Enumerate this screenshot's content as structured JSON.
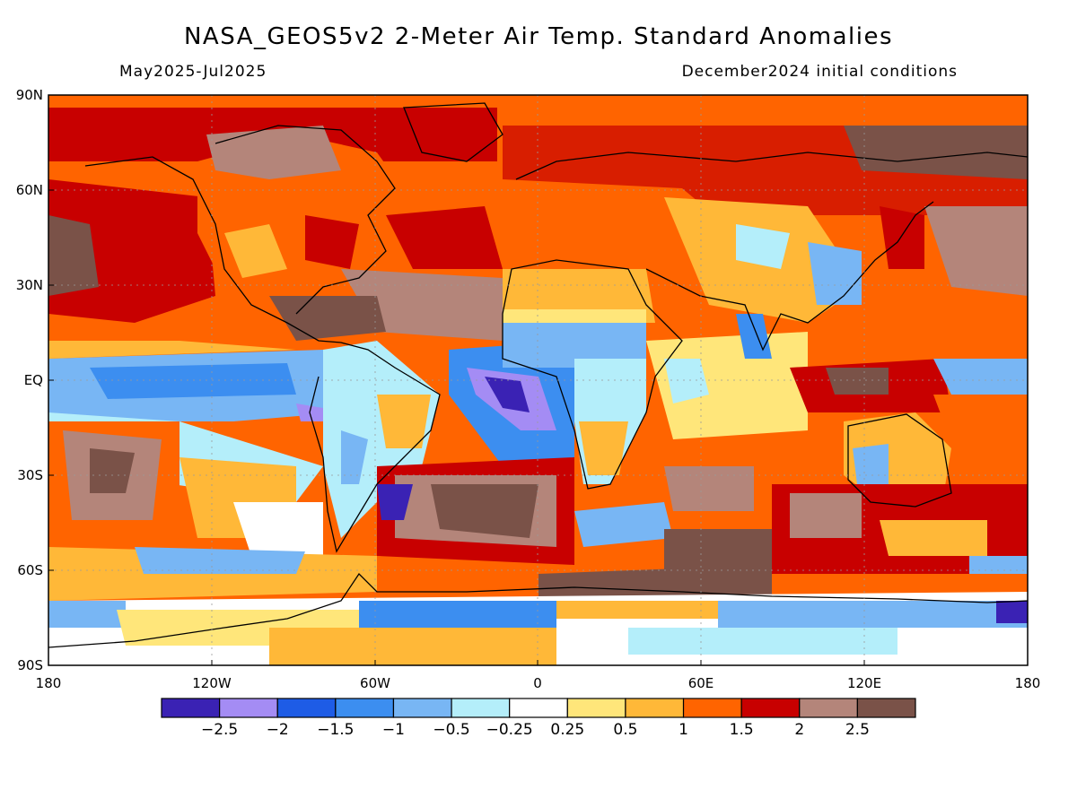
{
  "header": {
    "title": "NASA_GEOS5v2 2-Meter Air Temp. Standard Anomalies",
    "period": "May2025-Jul2025",
    "init": "December2024 initial conditions"
  },
  "axes": {
    "lat_labels": [
      "90N",
      "60N",
      "30N",
      "EQ",
      "30S",
      "60S",
      "90S"
    ],
    "lon_labels": [
      "180",
      "120W",
      "60W",
      "0",
      "60E",
      "120E",
      "180"
    ]
  },
  "colorbar": {
    "colors": [
      "#3a22b4",
      "#a48cf4",
      "#1e5ce6",
      "#3c8ef0",
      "#78b6f4",
      "#b4eefa",
      "#ffffff",
      "#ffe67a",
      "#ffb838",
      "#ff6400",
      "#c80000",
      "#b4857a",
      "#7a5248"
    ],
    "labels": [
      "-2.5",
      "-2",
      "-1.5",
      "-1",
      "-0.5",
      "-0.25",
      "0.25",
      "0.5",
      "1",
      "1.5",
      "2",
      "2.5"
    ]
  }
}
